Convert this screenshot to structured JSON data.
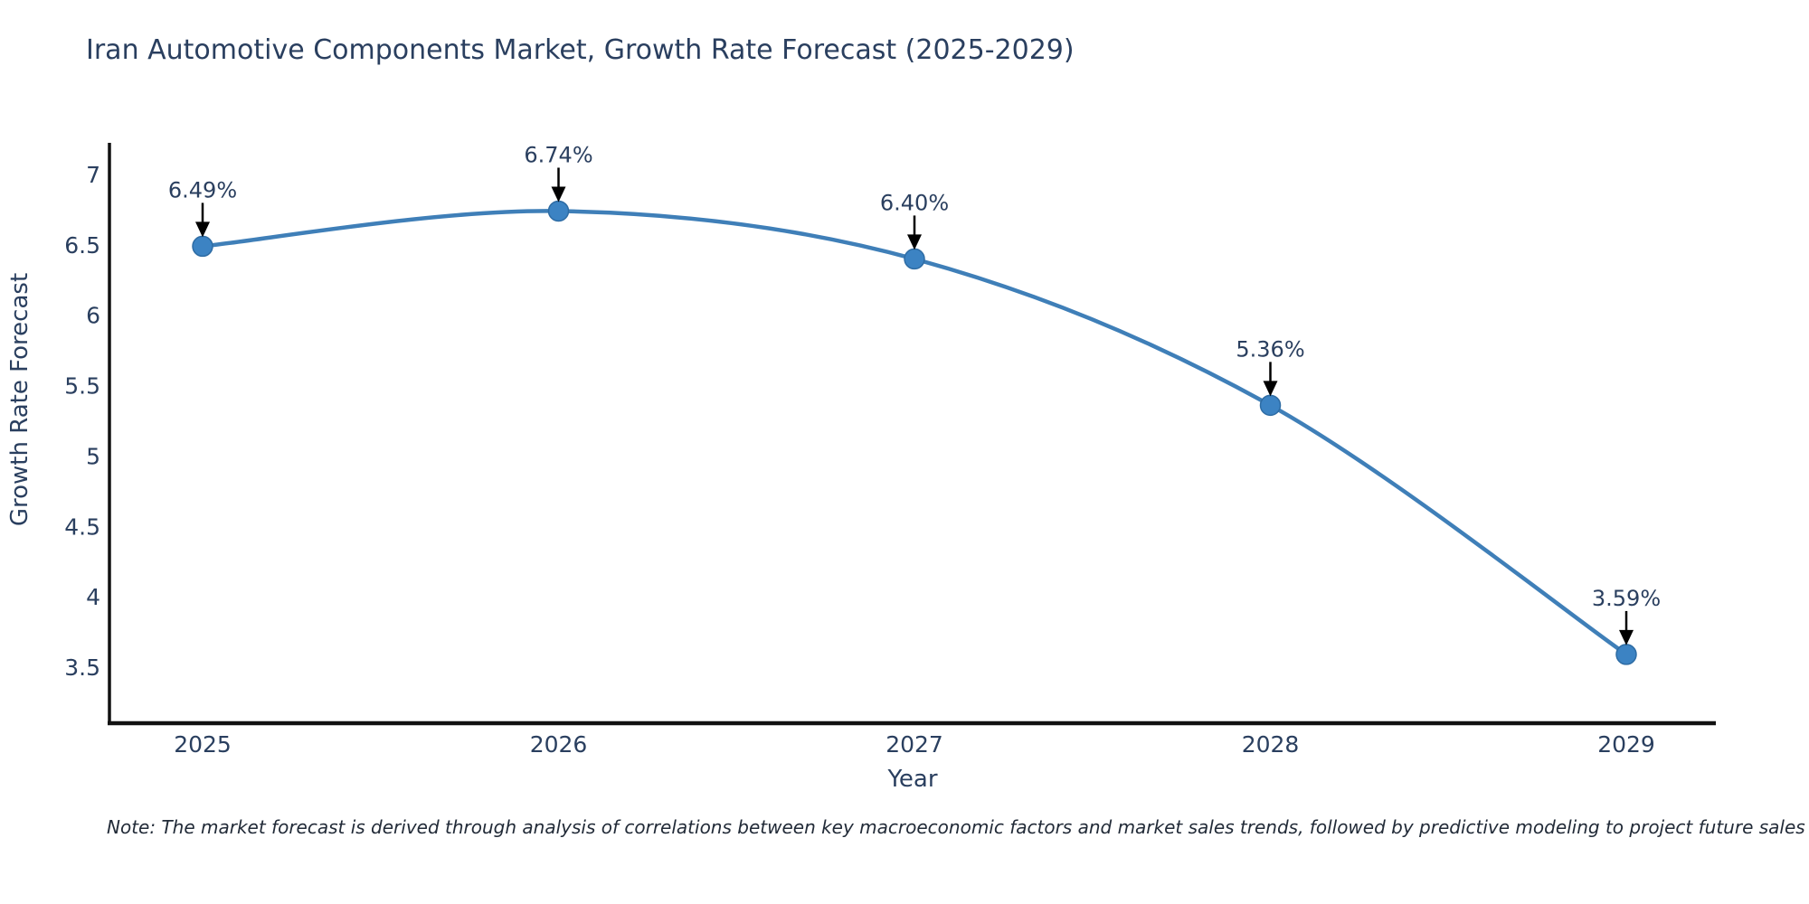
{
  "title": "Iran Automotive Components Market, Growth Rate Forecast (2025-2029)",
  "note": "Note: The market forecast is derived through analysis of correlations between key macroeconomic factors and market sales trends, followed by predictive modeling to project future sales",
  "colors": {
    "line": "#3f7fb8",
    "marker_fill": "#3c83c3",
    "marker_edge": "#2e6ca4",
    "axis": "#111111",
    "text": "#2a3f5f",
    "annotation_arrow": "#000000"
  },
  "chart_data": {
    "type": "line",
    "title": "Iran Automotive Components Market, Growth Rate Forecast (2025-2029)",
    "xlabel": "Year",
    "ylabel": "Growth Rate Forecast",
    "x": [
      2025,
      2026,
      2027,
      2028,
      2029
    ],
    "y": [
      6.49,
      6.74,
      6.4,
      5.36,
      3.59
    ],
    "point_labels": [
      "6.49%",
      "6.74%",
      "6.40%",
      "5.36%",
      "3.59%"
    ],
    "x_tick_labels": [
      "2025",
      "2026",
      "2027",
      "2028",
      "2029"
    ],
    "y_ticks": [
      7,
      6.5,
      6,
      5.5,
      5,
      4.5,
      4,
      3.5
    ],
    "ylim": [
      3.11,
      7.21
    ],
    "xlim": [
      2024.74,
      2029.26
    ],
    "grid": false,
    "legend": "none",
    "line_shape": "spline",
    "markers": true,
    "annotations": "value labels with down arrows above each point"
  }
}
